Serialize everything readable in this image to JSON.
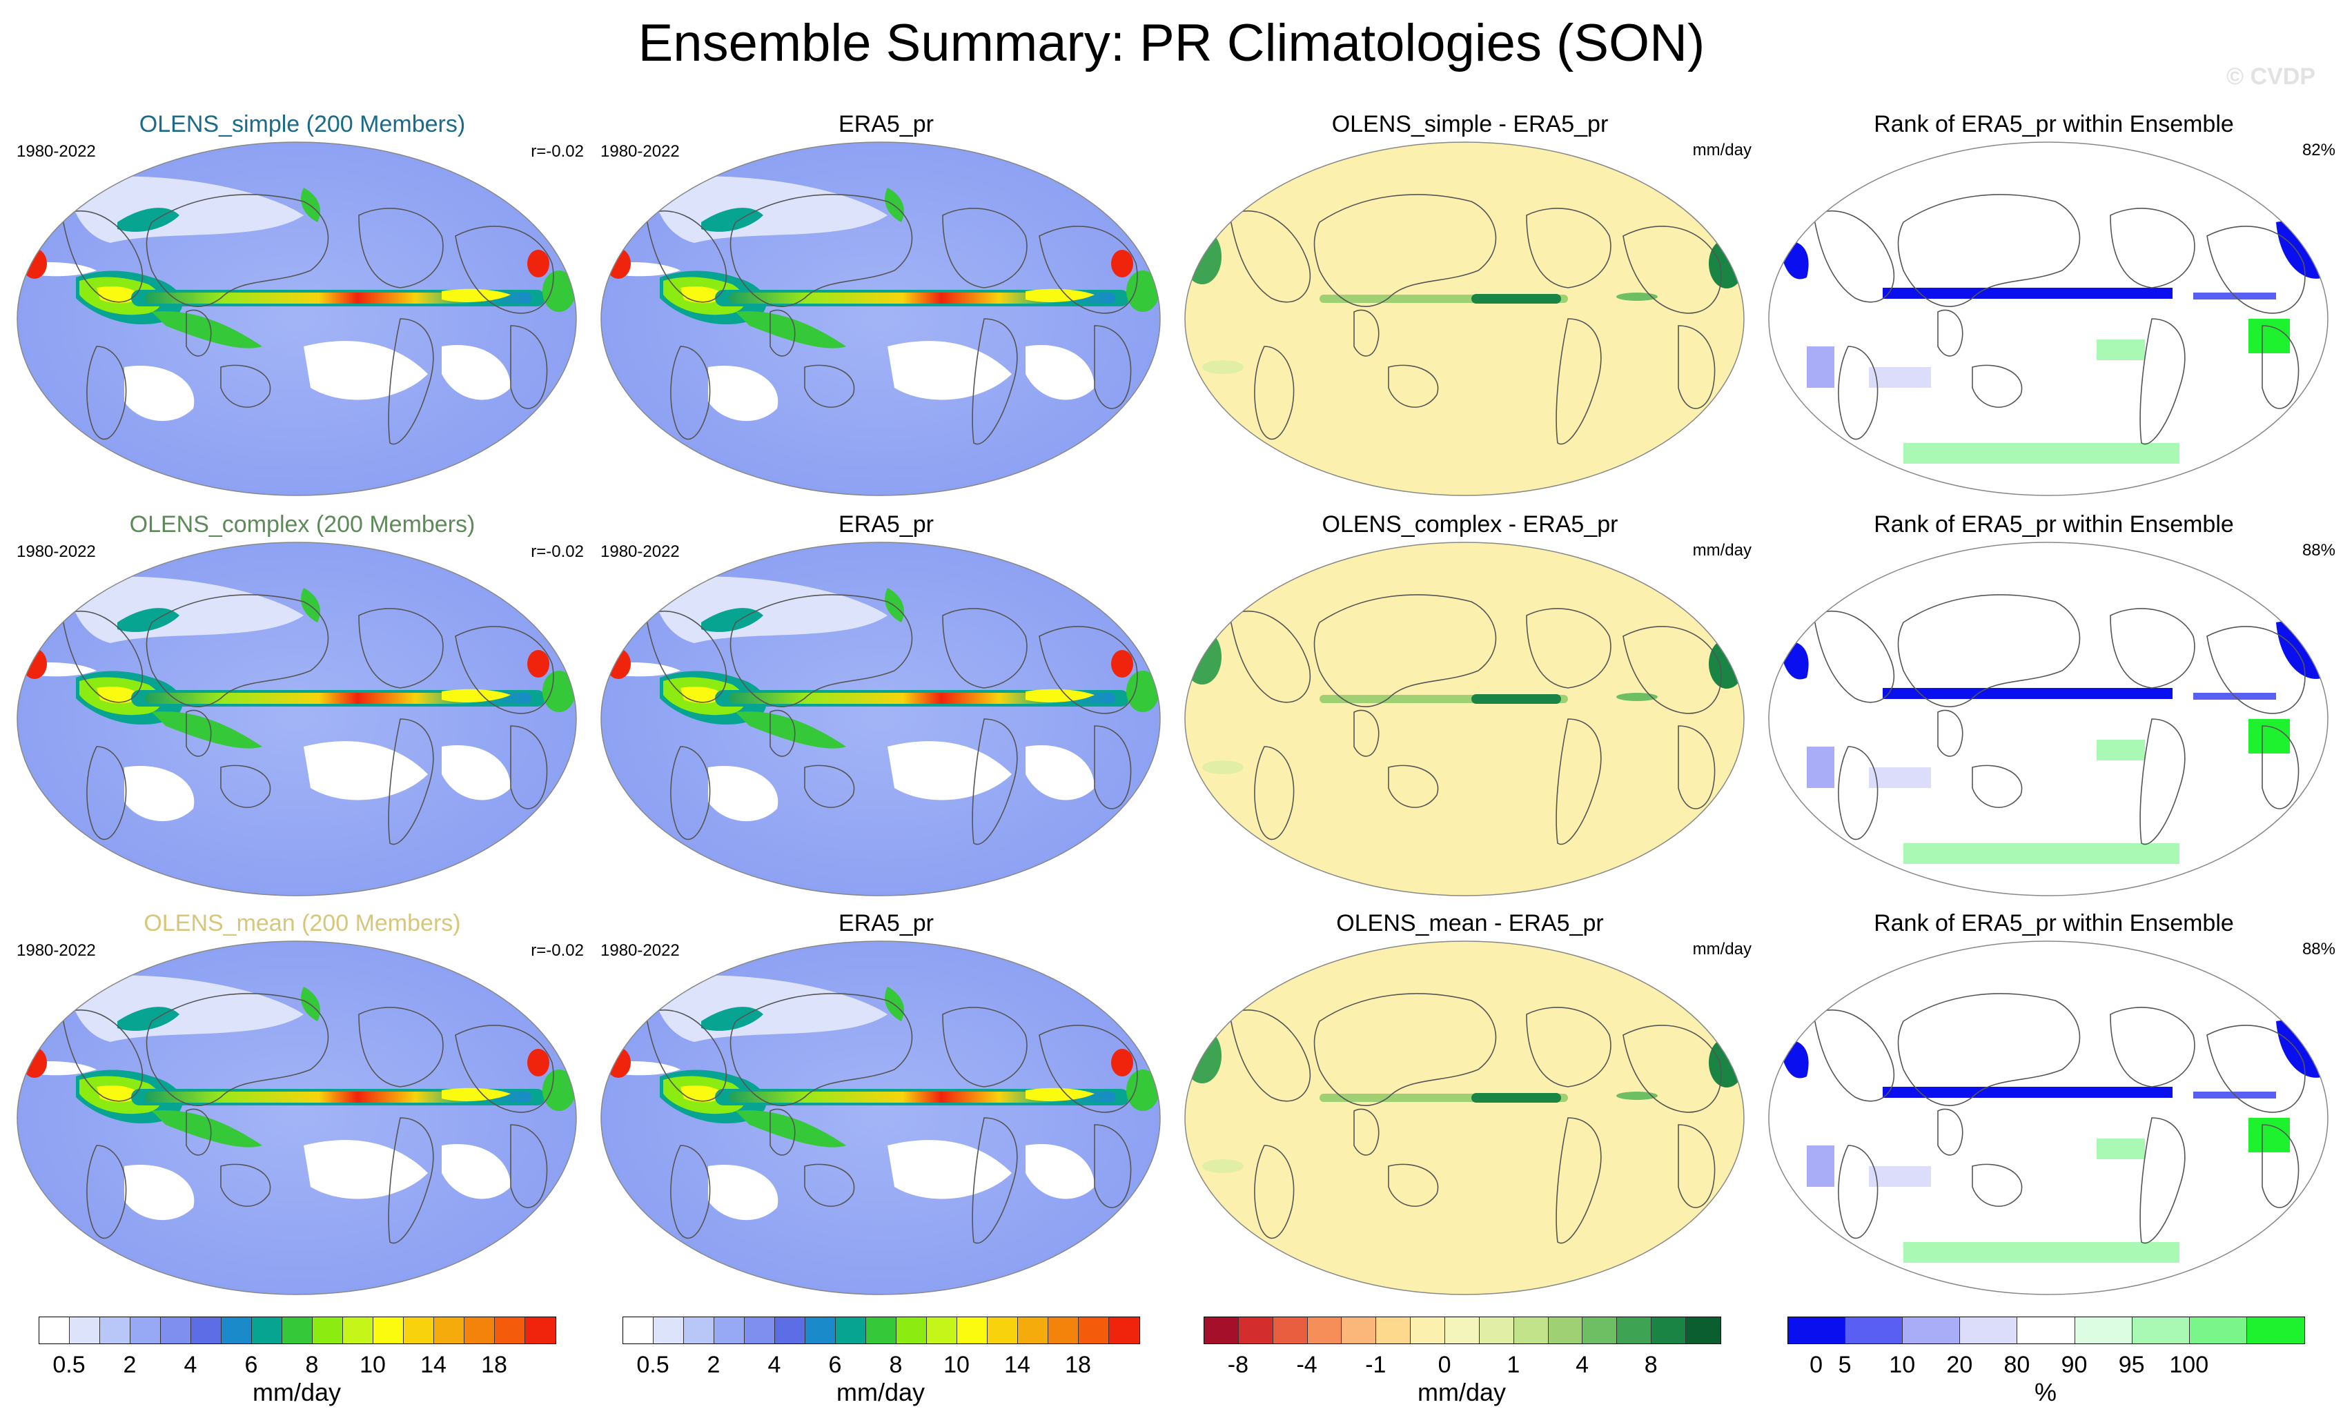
{
  "title": "Ensemble Summary: PR Climatologies (SON)",
  "watermark": "© CVDP",
  "rows": [
    {
      "ens_title": "OLENS_simple (200 Members)",
      "ens_color": "#1a6a8a",
      "period": "1980-2022",
      "corr": "r=-0.02",
      "obs_title": "ERA5_pr",
      "obs_period": "1980-2022",
      "diff_title": "OLENS_simple - ERA5_pr",
      "diff_unit": "mm/day",
      "rank_title": "Rank of ERA5_pr within Ensemble",
      "rank_pct": "82%"
    },
    {
      "ens_title": "OLENS_complex (200 Members)",
      "ens_color": "#5e8a5a",
      "period": "1980-2022",
      "corr": "r=-0.02",
      "obs_title": "ERA5_pr",
      "obs_period": "1980-2022",
      "diff_title": "OLENS_complex - ERA5_pr",
      "diff_unit": "mm/day",
      "rank_title": "Rank of ERA5_pr within Ensemble",
      "rank_pct": "88%"
    },
    {
      "ens_title": "OLENS_mean (200 Members)",
      "ens_color": "#d6c77a",
      "period": "1980-2022",
      "corr": "r=-0.02",
      "obs_title": "ERA5_pr",
      "obs_period": "1980-2022",
      "diff_title": "OLENS_mean - ERA5_pr",
      "diff_unit": "mm/day",
      "rank_title": "Rank of ERA5_pr within Ensemble",
      "rank_pct": "88%"
    }
  ],
  "colorbars": [
    {
      "name": "precip-colorbar-1",
      "colors": [
        "#ffffff",
        "#dde3fb",
        "#b9c6f8",
        "#97a9f5",
        "#7f8ff0",
        "#5c6de6",
        "#1a8acb",
        "#07a491",
        "#35c839",
        "#8ceb10",
        "#c6f51a",
        "#fbfb0f",
        "#f8d30d",
        "#f6ab0c",
        "#f4830b",
        "#f45b0a",
        "#f0230c"
      ],
      "labels": [
        "0.5",
        "2",
        "4",
        "6",
        "8",
        "10",
        "14",
        "18"
      ],
      "label_after_box": [
        1,
        3,
        5,
        7,
        9,
        11,
        13,
        15
      ],
      "unit": "mm/day"
    },
    {
      "name": "precip-colorbar-2",
      "colors": [
        "#ffffff",
        "#dde3fb",
        "#b9c6f8",
        "#97a9f5",
        "#7f8ff0",
        "#5c6de6",
        "#1a8acb",
        "#07a491",
        "#35c839",
        "#8ceb10",
        "#c6f51a",
        "#fbfb0f",
        "#f8d30d",
        "#f6ab0c",
        "#f4830b",
        "#f45b0a",
        "#f0230c"
      ],
      "labels": [
        "0.5",
        "2",
        "4",
        "6",
        "8",
        "10",
        "14",
        "18"
      ],
      "label_after_box": [
        1,
        3,
        5,
        7,
        9,
        11,
        13,
        15
      ],
      "unit": "mm/day"
    },
    {
      "name": "difference-colorbar",
      "colors": [
        "#a50f2a",
        "#d42d2d",
        "#e85e3e",
        "#f68e5a",
        "#fbb77a",
        "#fdd98e",
        "#fbf0ad",
        "#f4f5bb",
        "#e1efa6",
        "#c2e38a",
        "#9fd074",
        "#6ebe63",
        "#3ea353",
        "#198443",
        "#0b5e2f"
      ],
      "labels": [
        "-8",
        "-4",
        "-1",
        "0",
        "1",
        "4",
        "8"
      ],
      "label_after_box": [
        1,
        3,
        5,
        7,
        9,
        11,
        13
      ],
      "unit": "mm/day"
    },
    {
      "name": "rank-colorbar",
      "colors": [
        "#0a0ff0",
        "#5a5ff4",
        "#a9acf7",
        "#dcdcfb",
        "#ffffff",
        "#dcfde2",
        "#a9f9b5",
        "#7af58a",
        "#1ef12e"
      ],
      "labels": [
        "0",
        "5",
        "10",
        "20",
        "80",
        "90",
        "95",
        "100"
      ],
      "label_after_box": [
        0.5,
        1,
        2,
        3,
        4,
        5,
        6,
        7
      ],
      "unit": "%"
    }
  ]
}
